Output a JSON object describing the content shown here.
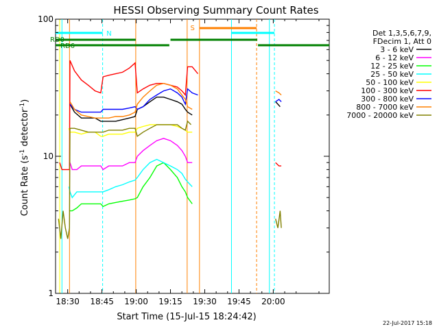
{
  "chart_data": {
    "type": "line",
    "title": "HESSI Observing Summary Count Rates",
    "xlabel": "Start Time (15-Jul-15 18:24:42)",
    "ylabel_main": "Count Rate (s",
    "ylabel_sup1": "-1",
    "ylabel_mid": " detector",
    "ylabel_sup2": "-1",
    "ylabel_end": ")",
    "x_range_min": [
      1104.7,
      1224.5
    ],
    "y_range": [
      1,
      100
    ],
    "y_scale": "log",
    "x_ticks": [
      {
        "label": "18:30",
        "min": 1110
      },
      {
        "label": "18:45",
        "min": 1125
      },
      {
        "label": "19:00",
        "min": 1140
      },
      {
        "label": "19:15",
        "min": 1155
      },
      {
        "label": "19:30",
        "min": 1170
      },
      {
        "label": "19:45",
        "min": 1185
      },
      {
        "label": "20:00",
        "min": 1200
      }
    ],
    "y_ticks": [
      {
        "label": "1",
        "value": 1
      },
      {
        "label": "10",
        "value": 10
      },
      {
        "label": "100",
        "value": 100
      }
    ],
    "legend_header": [
      "Det 1,3,5,6,7,9,",
      "FDecim 1, Att 0"
    ],
    "series": [
      {
        "name": "3 - 6 keV",
        "color": "#000000",
        "x": [
          1111,
          1113,
          1116,
          1119,
          1122,
          1124.5,
          1125.5,
          1128,
          1131,
          1134,
          1137,
          1139.5,
          1140.5,
          1143,
          1146,
          1149,
          1152,
          1155,
          1158,
          1160,
          1161.5,
          1162.5,
          1164.5,
          1193,
          1201,
          1202,
          1203
        ],
        "y": [
          24,
          21,
          19,
          19,
          19,
          18,
          18,
          18,
          18,
          18.5,
          19,
          19.5,
          22,
          23,
          25,
          27,
          27,
          26,
          25,
          24,
          22,
          21,
          20,
          null,
          25,
          24,
          23
        ]
      },
      {
        "name": "6 - 12 keV",
        "color": "#ff00ff",
        "x": [
          1111,
          1112,
          1114,
          1116,
          1119,
          1122,
          1124.5,
          1125.5,
          1128,
          1131,
          1134,
          1137,
          1139.5,
          1140.5,
          1143,
          1146,
          1149,
          1152,
          1155,
          1158,
          1160,
          1161.5,
          1162.5,
          1164.5
        ],
        "y": [
          9,
          8,
          8,
          8.5,
          8.5,
          8.5,
          8.5,
          8,
          8.5,
          8.5,
          8.5,
          9,
          9,
          10,
          11,
          12,
          13,
          13.5,
          13,
          12,
          11,
          10,
          9,
          9
        ]
      },
      {
        "name": "12 - 25 keV",
        "color": "#00ff00",
        "x": [
          1111,
          1112,
          1114,
          1116,
          1119,
          1122,
          1124.5,
          1125.5,
          1128,
          1131,
          1134,
          1137,
          1139.5,
          1140.5,
          1143,
          1146,
          1149,
          1152,
          1155,
          1158,
          1160,
          1161.5,
          1162.5,
          1164.5
        ],
        "y": [
          4,
          4,
          4.2,
          4.5,
          4.5,
          4.5,
          4.5,
          4.3,
          4.5,
          4.6,
          4.7,
          4.8,
          4.9,
          5,
          6,
          7,
          8.5,
          9,
          8,
          7,
          6,
          5.5,
          5,
          4.5
        ]
      },
      {
        "name": "25 - 50 keV",
        "color": "#00ffff",
        "x": [
          1110.5,
          1111,
          1112,
          1114,
          1116,
          1119,
          1122,
          1124.5,
          1125.5,
          1128,
          1131,
          1134,
          1137,
          1139.5,
          1140.5,
          1143,
          1146,
          1149,
          1152,
          1155,
          1158,
          1160,
          1161.5,
          1162.5,
          1164.5
        ],
        "y": [
          6,
          5.5,
          5,
          5.5,
          5.5,
          5.5,
          5.5,
          5.5,
          5.5,
          5.7,
          6,
          6.2,
          6.5,
          6.7,
          7,
          8,
          9,
          9.5,
          9,
          8.5,
          8,
          7.5,
          6.8,
          6.5,
          6
        ]
      },
      {
        "name": "50 - 100 keV",
        "color": "#ffff00",
        "x": [
          1110.5,
          1111,
          1113,
          1116,
          1119,
          1122,
          1124.5,
          1125.5,
          1128,
          1131,
          1134,
          1137,
          1139.5,
          1140.5,
          1143,
          1146,
          1149,
          1152,
          1155,
          1158,
          1160,
          1161.5,
          1162.5,
          1164.5
        ],
        "y": [
          16,
          15,
          15,
          14.5,
          15,
          15,
          14,
          14,
          14.5,
          14.5,
          14.5,
          15,
          15,
          16,
          16.5,
          17,
          17,
          17,
          17,
          16.5,
          16,
          15.5,
          15,
          15
        ]
      },
      {
        "name": "100 - 300 keV",
        "color": "#ff0000",
        "x": [
          1106.5,
          1107.5,
          1109,
          1110.8,
          1111,
          1113,
          1116,
          1119,
          1122,
          1124.5,
          1125.5,
          1128,
          1131,
          1134,
          1137,
          1139.5,
          1140.5,
          1143,
          1146,
          1149,
          1152,
          1155,
          1158,
          1160,
          1161.5,
          1162.5,
          1164.5,
          1167,
          1192.5,
          1201,
          1202.5,
          1203.5
        ],
        "y": [
          9,
          8,
          8,
          8,
          50,
          42,
          36,
          33,
          30,
          29,
          38,
          39,
          40,
          41,
          44,
          48,
          29,
          31,
          33,
          34,
          34,
          33,
          32,
          30,
          28,
          45,
          45,
          40,
          null,
          9,
          8.5,
          8.5
        ]
      },
      {
        "name": "300 - 800 keV",
        "color": "#0000ff",
        "x": [
          1111,
          1113,
          1116,
          1119,
          1122,
          1124.5,
          1125.5,
          1128,
          1131,
          1134,
          1137,
          1139.5,
          1140.5,
          1143,
          1146,
          1149,
          1152,
          1155,
          1158,
          1160,
          1161.5,
          1162.5,
          1164.5,
          1167,
          1192.5,
          1201,
          1202.5,
          1203.5
        ],
        "y": [
          24,
          22,
          21,
          21,
          21,
          21,
          22,
          22,
          22,
          22,
          22.5,
          23,
          22,
          23,
          26,
          28,
          30,
          31,
          29,
          27,
          24,
          31,
          29,
          28,
          null,
          25,
          26,
          25
        ]
      },
      {
        "name": "800 - 7000 keV",
        "color": "#ff8000",
        "x": [
          1111,
          1113,
          1116,
          1119,
          1122,
          1124.5,
          1125.5,
          1128,
          1131,
          1134,
          1137,
          1139.5,
          1140.5,
          1143,
          1146,
          1149,
          1152,
          1155,
          1158,
          1160,
          1161.5,
          1162.5,
          1164.5,
          1192.5,
          1201,
          1202.5,
          1203.5
        ],
        "y": [
          25,
          22,
          20,
          19.5,
          19,
          19,
          19,
          19,
          19.5,
          19.5,
          20,
          21,
          24,
          27,
          30,
          33,
          34,
          33,
          31,
          28,
          26,
          23,
          22,
          null,
          30,
          29,
          28
        ]
      },
      {
        "name": "7000 - 20000 keV",
        "color": "#808000",
        "x": [
          1106,
          1107,
          1108,
          1109,
          1110,
          1110.8,
          1111,
          1113,
          1116,
          1119,
          1122,
          1124.5,
          1125.5,
          1128,
          1131,
          1134,
          1137,
          1139.5,
          1140.5,
          1143,
          1146,
          1149,
          1152,
          1155,
          1158,
          1160,
          1161.5,
          1162.5,
          1164,
          1192.5,
          1201,
          1202,
          1203,
          1203.5
        ],
        "y": [
          3.5,
          2.5,
          4,
          3,
          2.5,
          3,
          16,
          16,
          15.5,
          15,
          15,
          15,
          15,
          15.5,
          15.5,
          15.5,
          16,
          16,
          14,
          15,
          16,
          17,
          17,
          17,
          17,
          16,
          15.5,
          18,
          17,
          null,
          3.5,
          3,
          4,
          3
        ]
      }
    ],
    "annotations": [
      {
        "label": "N",
        "color": "#00ffff"
      },
      {
        "label": "S",
        "color": "#ff8000"
      },
      {
        "label": "RD0",
        "color": "#008000"
      },
      {
        "label": "RD6",
        "color": "#008000"
      }
    ],
    "date_stamp": "22-Jul-2017 15:18"
  }
}
